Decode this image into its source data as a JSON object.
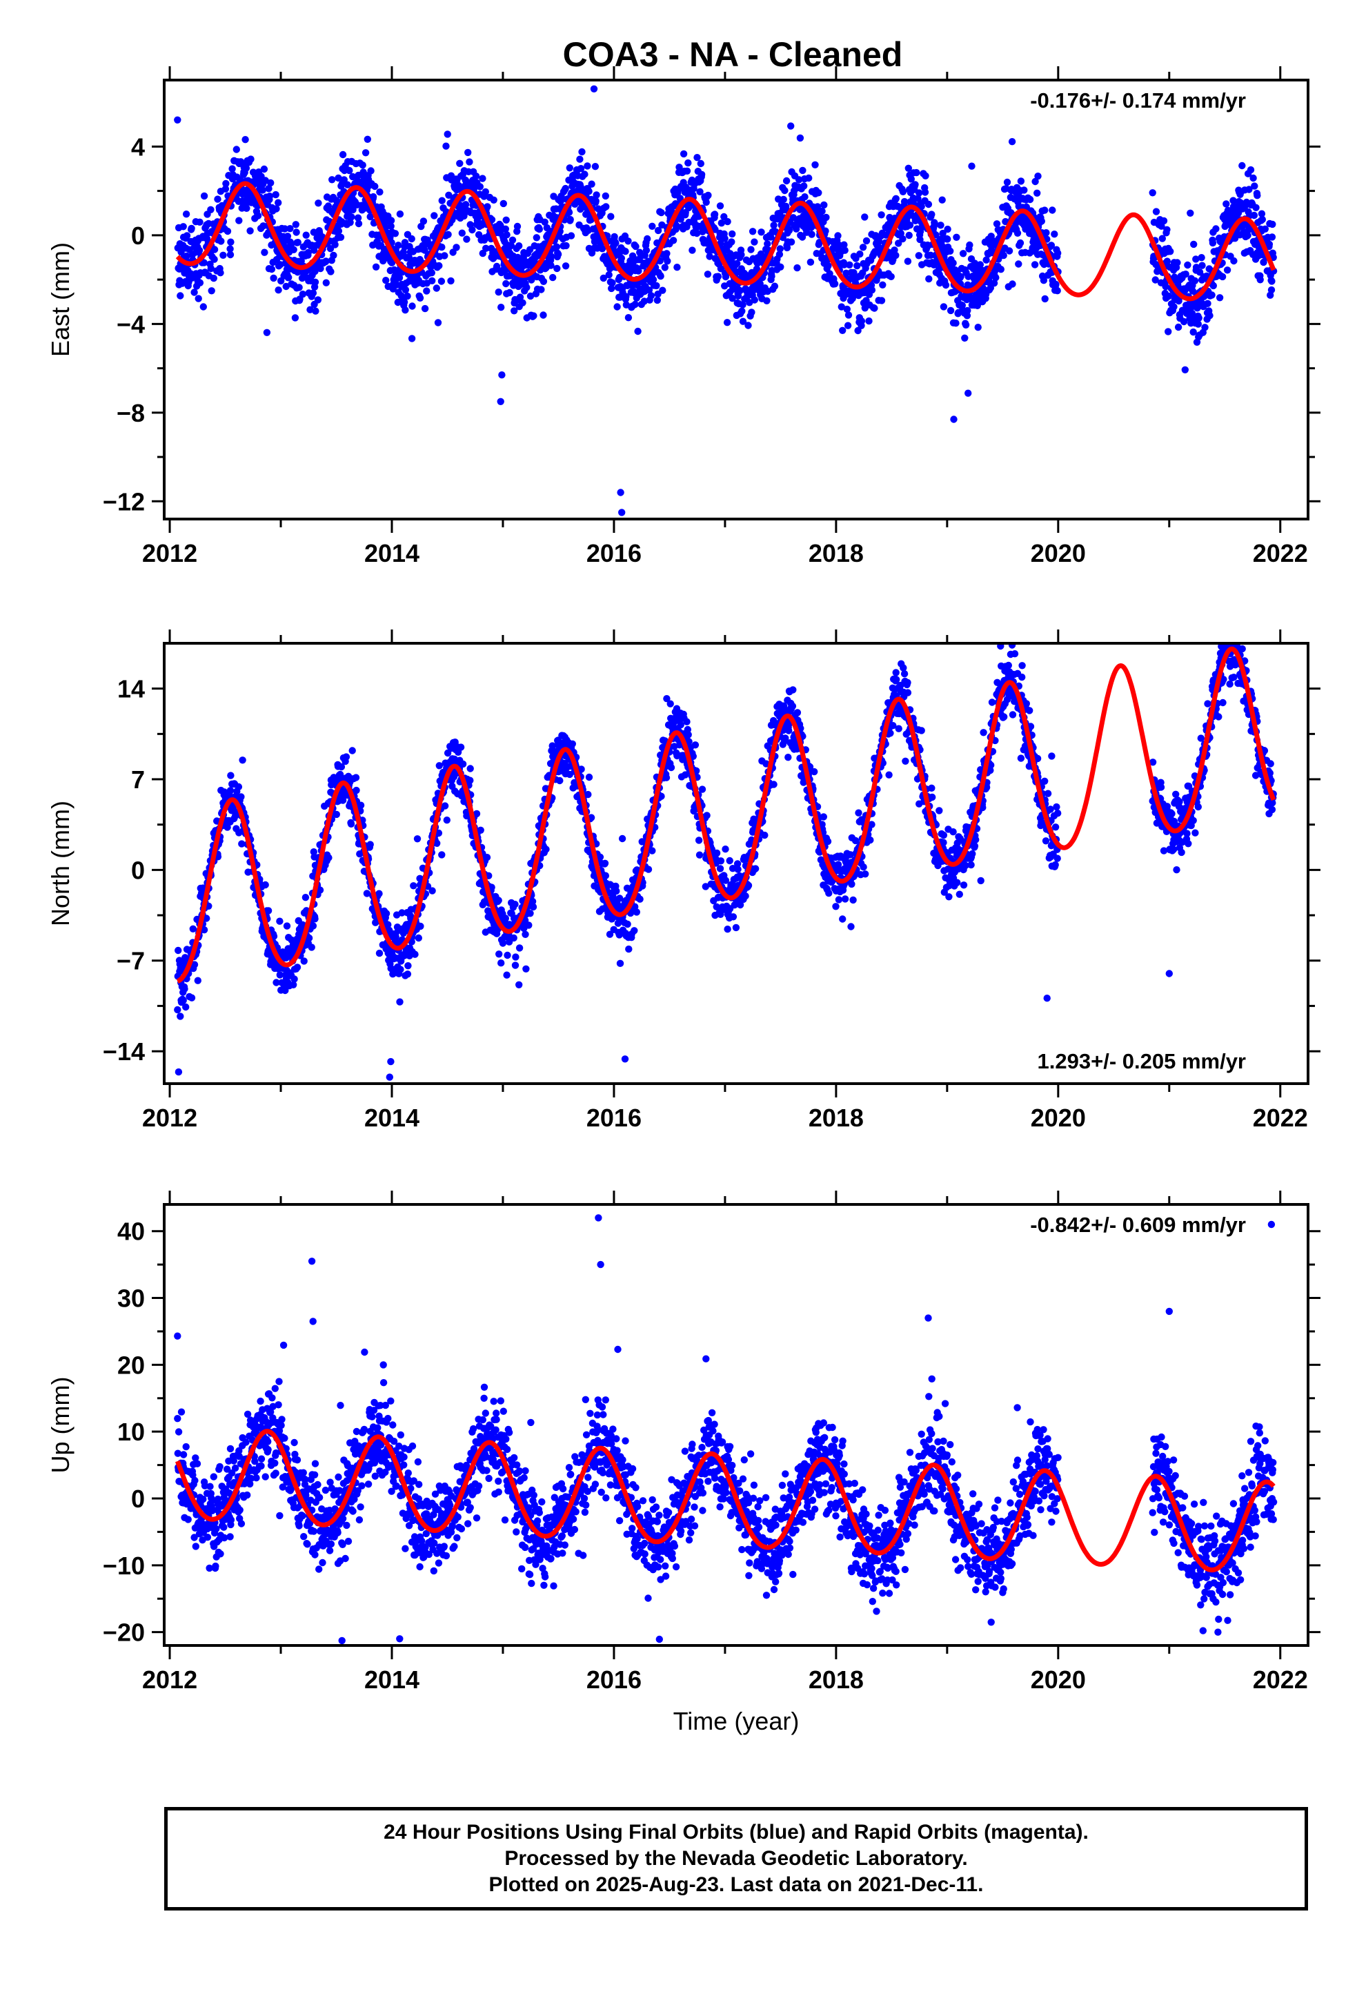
{
  "title": "COA3  - NA - Cleaned",
  "footer": {
    "line1": "24 Hour Positions Using Final Orbits (blue) and Rapid Orbits (magenta).",
    "line2": "Processed by the Nevada Geodetic Laboratory.",
    "line3": "Plotted on 2025-Aug-23. Last data on 2021-Dec-11."
  },
  "colors": {
    "data_points": "#0000ff",
    "fit_line": "#ff0000",
    "frame": "#000000"
  },
  "chart_data": [
    {
      "type": "scatter",
      "panel": "east",
      "ylabel": "East (mm)",
      "xlabel": "",
      "rate_label": "-0.176+/- 0.174 mm/yr",
      "rate_position": "top-right",
      "xlim": [
        2011.95,
        2022.25
      ],
      "ylim": [
        -12.8,
        7.0
      ],
      "x_ticks": [
        2012,
        2014,
        2016,
        2018,
        2020,
        2022
      ],
      "x_tick_labels": [
        "2012",
        "2014",
        "2016",
        "2018",
        "2020",
        "2022"
      ],
      "y_ticks": [
        4,
        0,
        -4,
        -8,
        -12
      ],
      "y_tick_labels": [
        "4",
        "0",
        "−4",
        "−8",
        "−12"
      ],
      "data_start": 2012.07,
      "data_end": 2021.94,
      "gap": [
        2020.0,
        2020.85
      ],
      "fit": {
        "intercept": 0.45,
        "rate_mm_per_yr": -0.176,
        "annual_amplitude": 1.85,
        "annual_peak": 2012.68,
        "semiannual_amplitude": 0.15
      },
      "scatter_sd": 0.9,
      "outliers": [
        [
          2016.06,
          -11.6
        ],
        [
          2016.07,
          -12.5
        ],
        [
          2015.82,
          6.6
        ],
        [
          2019.06,
          -8.3
        ],
        [
          2014.98,
          -7.5
        ],
        [
          2014.99,
          -6.3
        ],
        [
          2012.07,
          5.2
        ]
      ]
    },
    {
      "type": "scatter",
      "panel": "north",
      "ylabel": "North (mm)",
      "xlabel": "",
      "rate_label": "1.293+/- 0.205 mm/yr",
      "rate_position": "bottom-right",
      "xlim": [
        2011.95,
        2022.25
      ],
      "ylim": [
        -16.5,
        17.5
      ],
      "x_ticks": [
        2012,
        2014,
        2016,
        2018,
        2020,
        2022
      ],
      "x_tick_labels": [
        "2012",
        "2014",
        "2016",
        "2018",
        "2020",
        "2022"
      ],
      "y_ticks": [
        14,
        7,
        0,
        -7,
        -14
      ],
      "y_tick_labels": [
        "14",
        "7",
        "0",
        "−7",
        "−14"
      ],
      "data_start": 2012.07,
      "data_end": 2021.94,
      "gap": [
        2020.0,
        2020.85
      ],
      "fit": {
        "intercept": -2.6,
        "rate_mm_per_yr": 1.293,
        "annual_amplitude": 6.7,
        "annual_peak": 2012.56,
        "semiannual_amplitude": 0.6
      },
      "scatter_sd": 1.1,
      "outliers": [
        [
          2013.98,
          -16.0
        ],
        [
          2013.99,
          -14.8
        ],
        [
          2016.1,
          -14.6
        ],
        [
          2019.9,
          -9.9
        ],
        [
          2021.0,
          -8.0
        ],
        [
          2021.55,
          16.7
        ],
        [
          2012.08,
          -15.6
        ]
      ]
    },
    {
      "type": "scatter",
      "panel": "up",
      "ylabel": "Up (mm)",
      "xlabel": "Time (year)",
      "rate_label": "-0.842+/- 0.609 mm/yr",
      "rate_position": "top-right",
      "xlim": [
        2011.95,
        2022.25
      ],
      "ylim": [
        -22.0,
        44.0
      ],
      "x_ticks": [
        2012,
        2014,
        2016,
        2018,
        2020,
        2022
      ],
      "x_tick_labels": [
        "2012",
        "2014",
        "2016",
        "2018",
        "2020",
        "2022"
      ],
      "y_ticks": [
        40,
        30,
        20,
        10,
        0,
        -10,
        -20
      ],
      "y_tick_labels": [
        "40",
        "30",
        "20",
        "10",
        "0",
        "−10",
        "−20"
      ],
      "data_start": 2012.07,
      "data_end": 2021.94,
      "gap": [
        2020.0,
        2020.85
      ],
      "fit": {
        "intercept": 3.5,
        "rate_mm_per_yr": -0.842,
        "annual_amplitude": 6.8,
        "annual_peak": 2012.88,
        "semiannual_amplitude": 0.5
      },
      "scatter_sd": 3.2,
      "outliers": [
        [
          2015.86,
          42.0
        ],
        [
          2015.88,
          35.0
        ],
        [
          2013.28,
          35.5
        ],
        [
          2013.29,
          26.5
        ],
        [
          2018.83,
          27.0
        ],
        [
          2021.0,
          28.0
        ],
        [
          2014.07,
          -21.0
        ],
        [
          2012.07,
          24.3
        ],
        [
          2021.92,
          41.0
        ]
      ]
    }
  ]
}
